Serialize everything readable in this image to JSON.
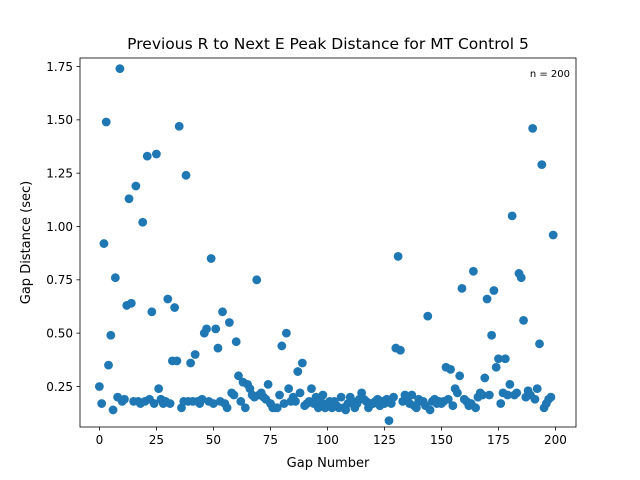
{
  "chart_data": {
    "type": "scatter",
    "title": "Previous R to Next E Peak Distance for MT Control 5",
    "xlabel": "Gap Number",
    "ylabel": "Gap Distance (sec)",
    "annotation": "n = 200",
    "xlim": [
      -8.5,
      209
    ],
    "ylim": [
      0.06,
      1.79
    ],
    "xticks": [
      0,
      25,
      50,
      75,
      100,
      125,
      150,
      175,
      200
    ],
    "yticks": [
      0.25,
      0.5,
      0.75,
      1.0,
      1.25,
      1.5,
      1.75
    ],
    "ytick_labels": [
      "0.25",
      "0.50",
      "0.75",
      "1.00",
      "1.25",
      "1.50",
      "1.75"
    ],
    "grid": false,
    "marker_color": "#1f77b4",
    "points": [
      [
        0,
        0.25
      ],
      [
        1,
        0.17
      ],
      [
        2,
        0.92
      ],
      [
        3,
        1.49
      ],
      [
        4,
        0.35
      ],
      [
        5,
        0.49
      ],
      [
        6,
        0.14
      ],
      [
        7,
        0.76
      ],
      [
        8,
        0.2
      ],
      [
        9,
        1.74
      ],
      [
        10,
        0.18
      ],
      [
        11,
        0.19
      ],
      [
        12,
        0.63
      ],
      [
        13,
        1.13
      ],
      [
        14,
        0.64
      ],
      [
        15,
        0.18
      ],
      [
        16,
        1.19
      ],
      [
        17,
        0.18
      ],
      [
        18,
        0.17
      ],
      [
        19,
        1.02
      ],
      [
        20,
        0.18
      ],
      [
        21,
        1.33
      ],
      [
        22,
        0.19
      ],
      [
        23,
        0.6
      ],
      [
        24,
        0.17
      ],
      [
        25,
        1.34
      ],
      [
        26,
        0.24
      ],
      [
        27,
        0.19
      ],
      [
        28,
        0.17
      ],
      [
        29,
        0.18
      ],
      [
        30,
        0.66
      ],
      [
        31,
        0.17
      ],
      [
        32,
        0.37
      ],
      [
        33,
        0.62
      ],
      [
        34,
        0.37
      ],
      [
        35,
        1.47
      ],
      [
        36,
        0.15
      ],
      [
        37,
        0.18
      ],
      [
        38,
        1.24
      ],
      [
        39,
        0.18
      ],
      [
        40,
        0.36
      ],
      [
        41,
        0.18
      ],
      [
        42,
        0.4
      ],
      [
        43,
        0.18
      ],
      [
        44,
        0.17
      ],
      [
        45,
        0.19
      ],
      [
        46,
        0.5
      ],
      [
        47,
        0.52
      ],
      [
        48,
        0.18
      ],
      [
        49,
        0.85
      ],
      [
        50,
        0.17
      ],
      [
        51,
        0.52
      ],
      [
        52,
        0.43
      ],
      [
        53,
        0.18
      ],
      [
        54,
        0.6
      ],
      [
        55,
        0.17
      ],
      [
        56,
        0.15
      ],
      [
        57,
        0.55
      ],
      [
        58,
        0.22
      ],
      [
        59,
        0.21
      ],
      [
        60,
        0.46
      ],
      [
        61,
        0.3
      ],
      [
        62,
        0.18
      ],
      [
        63,
        0.27
      ],
      [
        64,
        0.15
      ],
      [
        65,
        0.26
      ],
      [
        66,
        0.24
      ],
      [
        67,
        0.21
      ],
      [
        68,
        0.2
      ],
      [
        69,
        0.75
      ],
      [
        70,
        0.21
      ],
      [
        71,
        0.22
      ],
      [
        72,
        0.2
      ],
      [
        73,
        0.19
      ],
      [
        74,
        0.26
      ],
      [
        75,
        0.17
      ],
      [
        76,
        0.15
      ],
      [
        77,
        0.15
      ],
      [
        78,
        0.15
      ],
      [
        79,
        0.21
      ],
      [
        80,
        0.44
      ],
      [
        81,
        0.17
      ],
      [
        82,
        0.5
      ],
      [
        83,
        0.24
      ],
      [
        84,
        0.18
      ],
      [
        85,
        0.2
      ],
      [
        86,
        0.18
      ],
      [
        87,
        0.32
      ],
      [
        88,
        0.22
      ],
      [
        89,
        0.36
      ],
      [
        90,
        0.16
      ],
      [
        91,
        0.17
      ],
      [
        92,
        0.18
      ],
      [
        93,
        0.24
      ],
      [
        94,
        0.17
      ],
      [
        95,
        0.2
      ],
      [
        96,
        0.15
      ],
      [
        97,
        0.18
      ],
      [
        98,
        0.21
      ],
      [
        99,
        0.15
      ],
      [
        100,
        0.17
      ],
      [
        101,
        0.18
      ],
      [
        102,
        0.15
      ],
      [
        103,
        0.18
      ],
      [
        104,
        0.16
      ],
      [
        105,
        0.15
      ],
      [
        106,
        0.2
      ],
      [
        107,
        0.15
      ],
      [
        108,
        0.14
      ],
      [
        109,
        0.17
      ],
      [
        110,
        0.2
      ],
      [
        111,
        0.18
      ],
      [
        112,
        0.15
      ],
      [
        113,
        0.17
      ],
      [
        114,
        0.19
      ],
      [
        115,
        0.22
      ],
      [
        116,
        0.19
      ],
      [
        117,
        0.18
      ],
      [
        118,
        0.15
      ],
      [
        119,
        0.17
      ],
      [
        120,
        0.17
      ],
      [
        121,
        0.18
      ],
      [
        122,
        0.19
      ],
      [
        123,
        0.16
      ],
      [
        124,
        0.18
      ],
      [
        125,
        0.17
      ],
      [
        126,
        0.19
      ],
      [
        127,
        0.09
      ],
      [
        128,
        0.17
      ],
      [
        129,
        0.2
      ],
      [
        130,
        0.43
      ],
      [
        131,
        0.86
      ],
      [
        132,
        0.42
      ],
      [
        133,
        0.18
      ],
      [
        134,
        0.21
      ],
      [
        135,
        0.19
      ],
      [
        136,
        0.17
      ],
      [
        137,
        0.21
      ],
      [
        138,
        0.16
      ],
      [
        139,
        0.15
      ],
      [
        140,
        0.19
      ],
      [
        141,
        0.18
      ],
      [
        142,
        0.18
      ],
      [
        143,
        0.16
      ],
      [
        144,
        0.58
      ],
      [
        145,
        0.14
      ],
      [
        146,
        0.18
      ],
      [
        147,
        0.19
      ],
      [
        148,
        0.17
      ],
      [
        149,
        0.18
      ],
      [
        150,
        0.17
      ],
      [
        151,
        0.18
      ],
      [
        152,
        0.34
      ],
      [
        153,
        0.19
      ],
      [
        154,
        0.33
      ],
      [
        155,
        0.16
      ],
      [
        156,
        0.24
      ],
      [
        157,
        0.22
      ],
      [
        158,
        0.3
      ],
      [
        159,
        0.71
      ],
      [
        160,
        0.19
      ],
      [
        161,
        0.18
      ],
      [
        162,
        0.16
      ],
      [
        163,
        0.17
      ],
      [
        164,
        0.79
      ],
      [
        165,
        0.15
      ],
      [
        166,
        0.2
      ],
      [
        167,
        0.22
      ],
      [
        168,
        0.21
      ],
      [
        169,
        0.29
      ],
      [
        170,
        0.66
      ],
      [
        171,
        0.21
      ],
      [
        172,
        0.49
      ],
      [
        173,
        0.7
      ],
      [
        174,
        0.34
      ],
      [
        175,
        0.38
      ],
      [
        176,
        0.17
      ],
      [
        177,
        0.22
      ],
      [
        178,
        0.38
      ],
      [
        179,
        0.21
      ],
      [
        180,
        0.26
      ],
      [
        181,
        1.05
      ],
      [
        182,
        0.21
      ],
      [
        183,
        0.22
      ],
      [
        184,
        0.78
      ],
      [
        185,
        0.76
      ],
      [
        186,
        0.56
      ],
      [
        187,
        0.2
      ],
      [
        188,
        0.23
      ],
      [
        189,
        0.21
      ],
      [
        190,
        1.46
      ],
      [
        191,
        0.19
      ],
      [
        192,
        0.24
      ],
      [
        193,
        0.45
      ],
      [
        194,
        1.29
      ],
      [
        195,
        0.15
      ],
      [
        196,
        0.17
      ],
      [
        197,
        0.19
      ],
      [
        198,
        0.2
      ],
      [
        199,
        0.96
      ]
    ]
  }
}
